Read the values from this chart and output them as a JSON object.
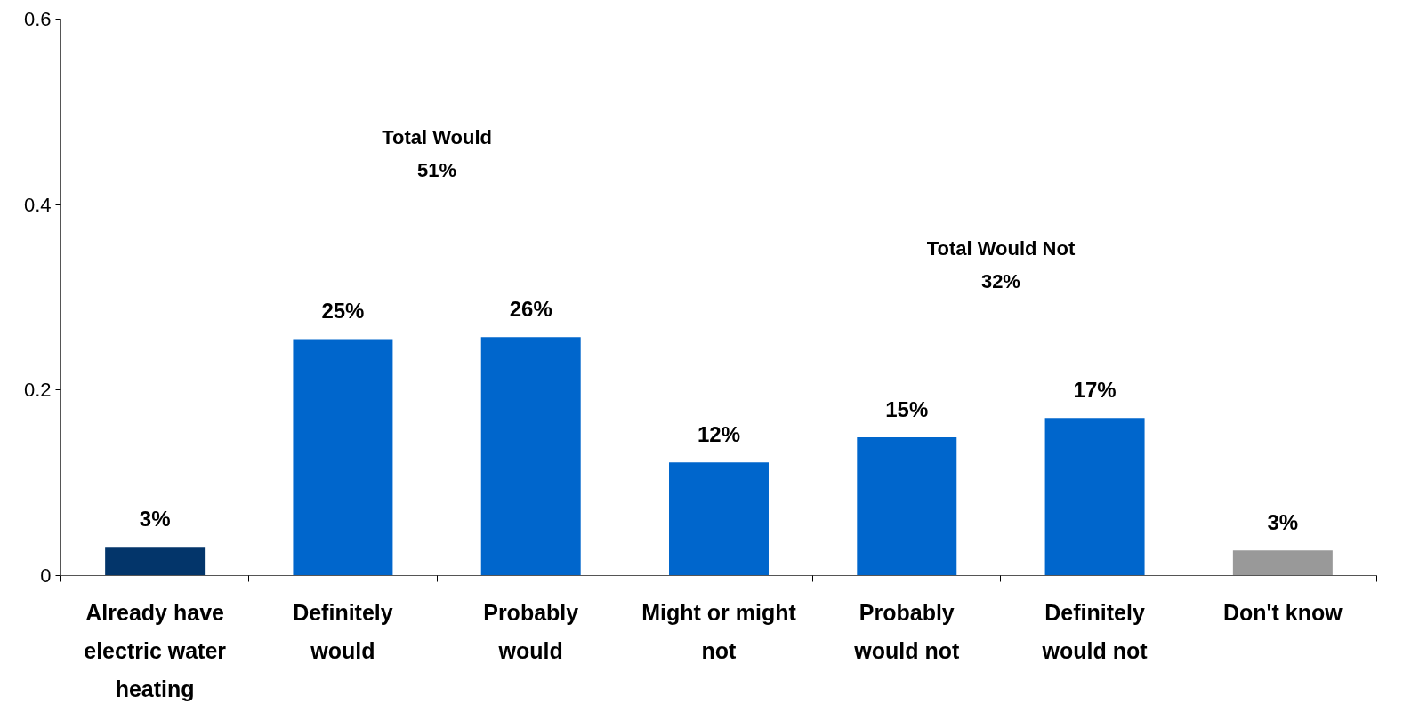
{
  "chart_data": {
    "type": "bar",
    "categories": [
      "Already have\nelectric water\nheating",
      "Definitely\nwould",
      "Probably\nwould",
      "Might or might\nnot",
      "Probably\nwould not",
      "Definitely\nwould not",
      "Don't know"
    ],
    "values": [
      0.031,
      0.255,
      0.257,
      0.122,
      0.149,
      0.17,
      0.027
    ],
    "colors": [
      "#03356a",
      "#0066cc",
      "#0066cc",
      "#0066cc",
      "#0066cc",
      "#0066cc",
      "#999999"
    ],
    "value_labels": [
      "3%",
      "25%",
      "26%",
      "12%",
      "15%",
      "17%",
      "3%"
    ],
    "ylim": [
      0,
      0.6
    ],
    "yticks": [
      0,
      {
        "value": 0.2,
        "label": "0.2"
      },
      {
        "value": 0.4,
        "label": "0.4"
      },
      {
        "value": 0.6,
        "label": "0.6"
      }
    ],
    "annotations": [
      "Total Would\n51%",
      "Total Would Not\n32%"
    ],
    "grid": false
  }
}
